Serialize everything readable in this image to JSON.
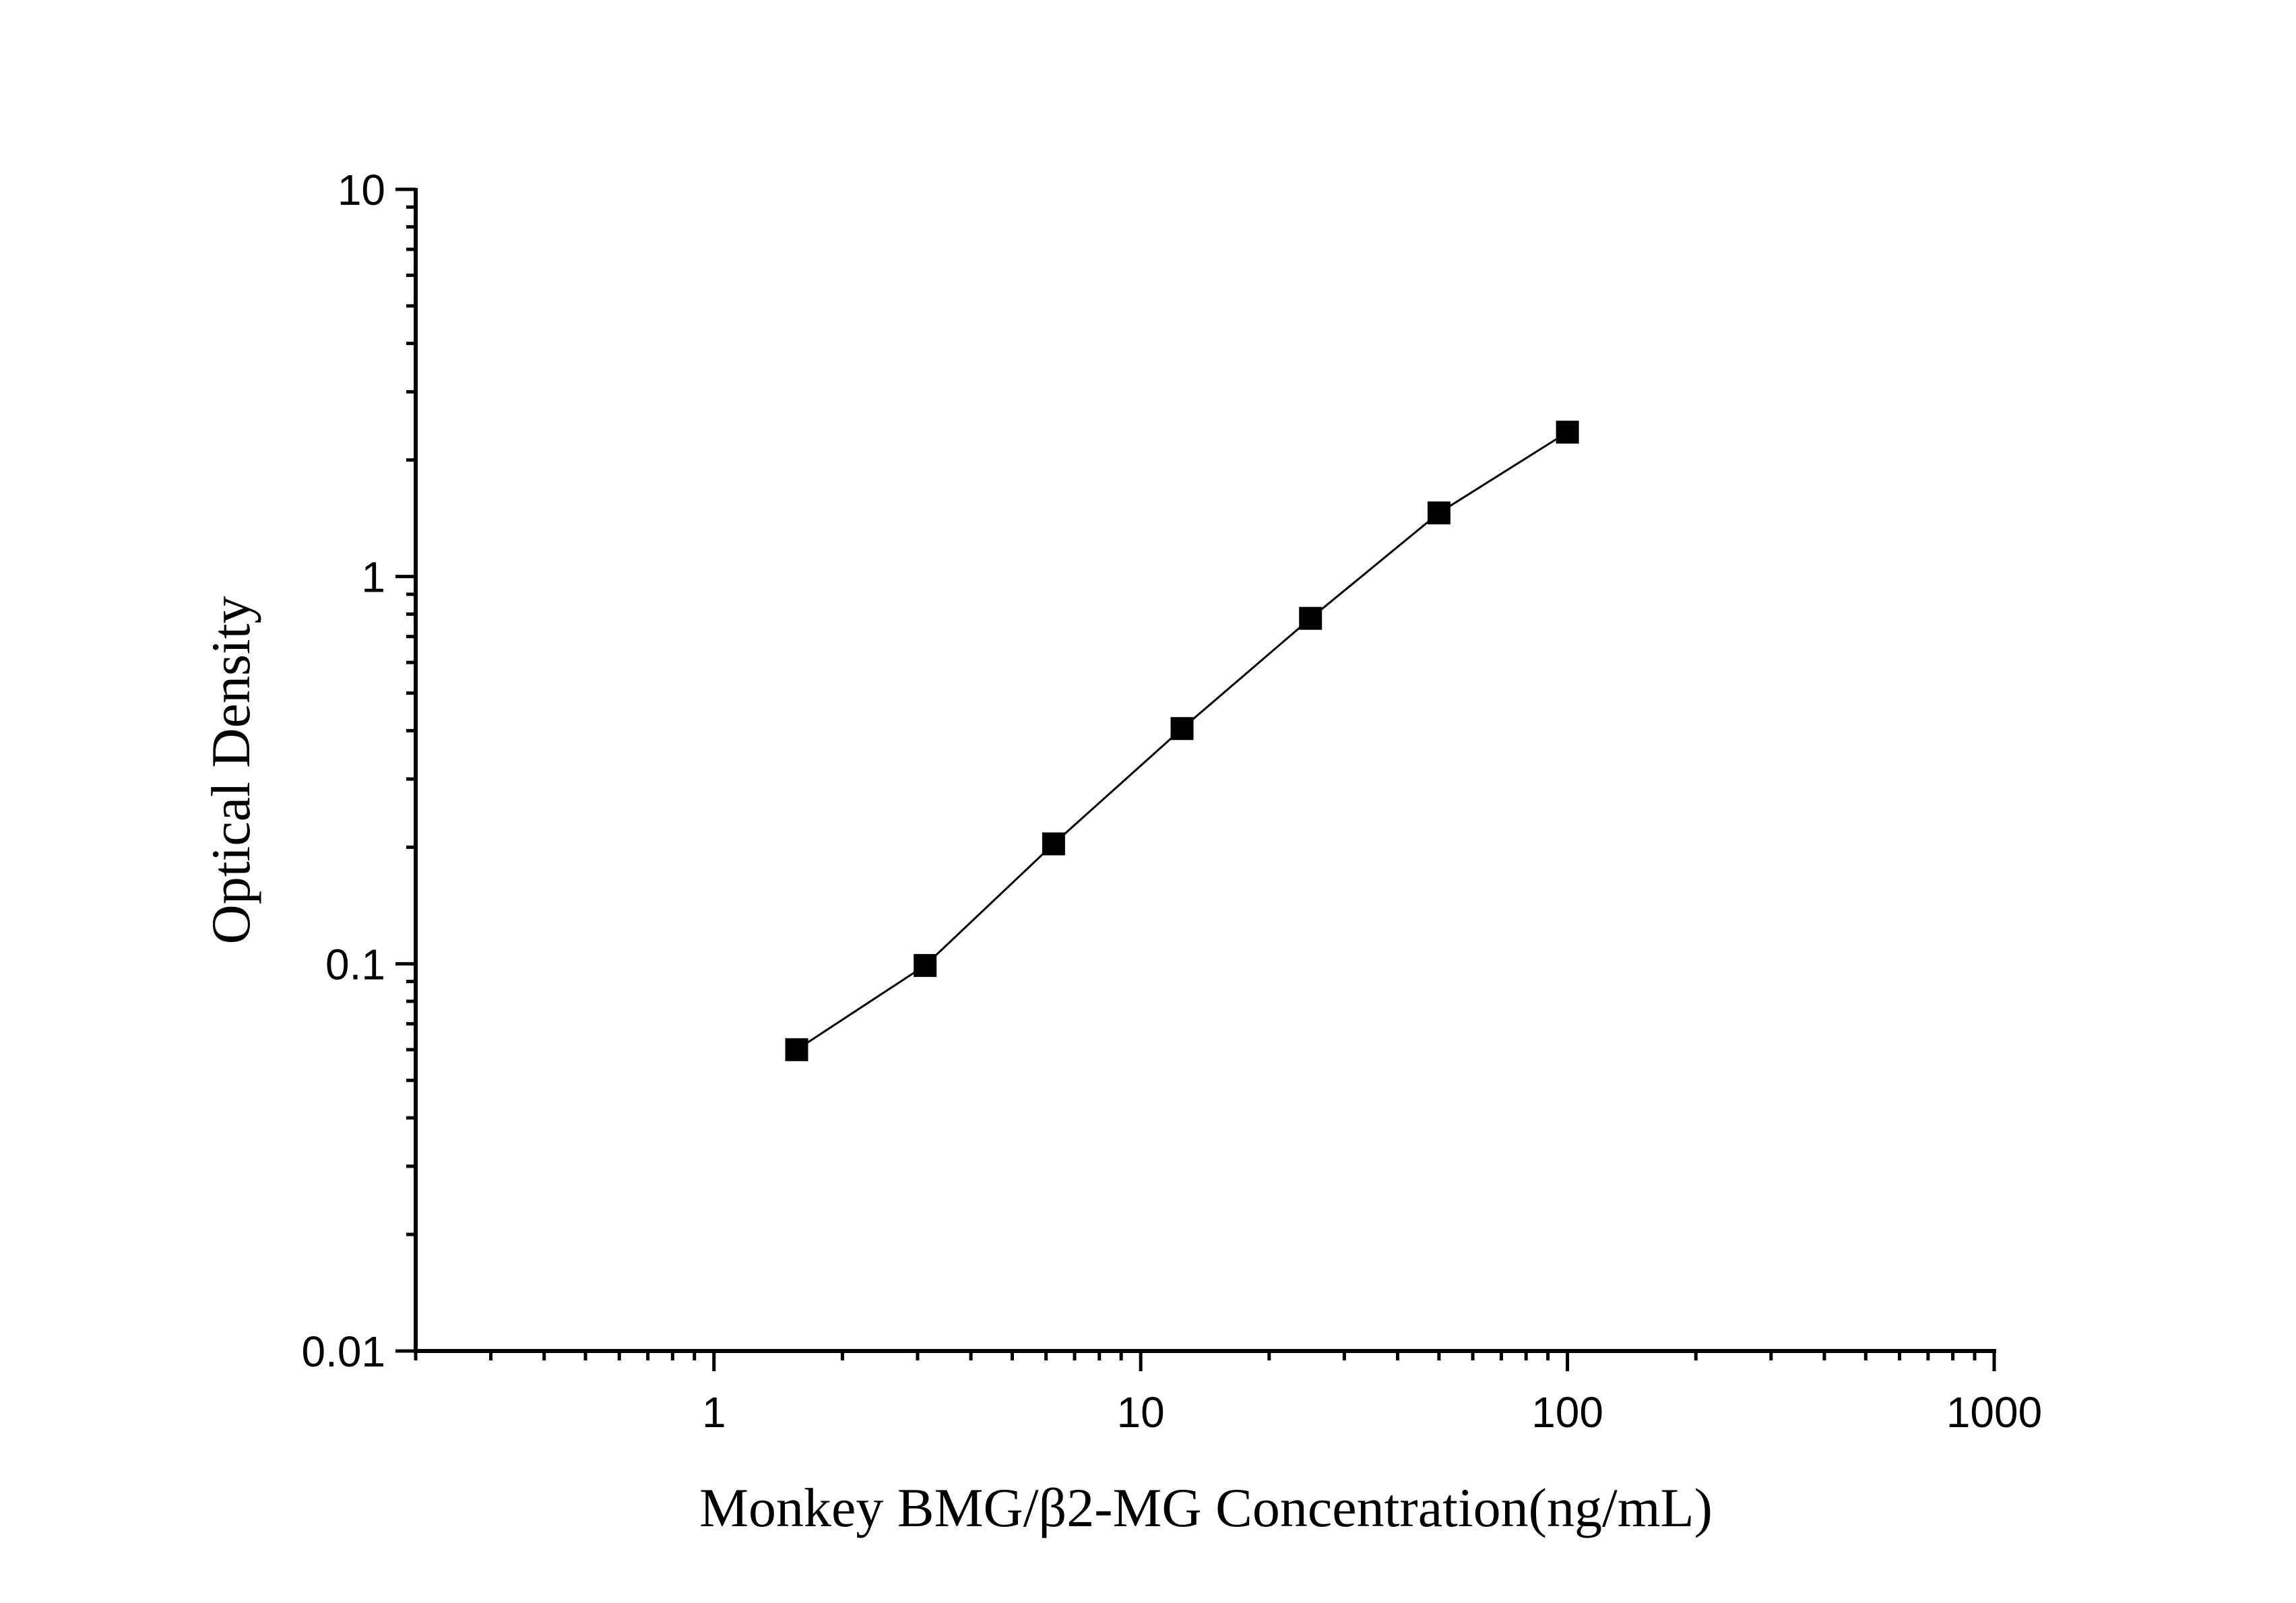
{
  "chart_data": {
    "type": "line",
    "title": "",
    "xlabel": "Monkey BMG/β2-MG Concentration(ng/mL)",
    "ylabel": "Optical Density",
    "x_scale": "log",
    "y_scale": "log",
    "xlim": [
      0.2,
      1000
    ],
    "ylim": [
      0.01,
      10
    ],
    "x_ticks": [
      1,
      10,
      100,
      1000
    ],
    "x_tick_labels": [
      "1",
      "10",
      "100",
      "1000"
    ],
    "y_ticks": [
      0.01,
      0.1,
      1,
      10
    ],
    "y_tick_labels": [
      "0.01",
      "0.1",
      "1",
      "10"
    ],
    "grid": false,
    "marker": "square",
    "color": "#000000",
    "series": [
      {
        "x": [
          1.5625,
          3.125,
          6.25,
          12.5,
          25,
          50,
          100
        ],
        "y": [
          0.06,
          0.099,
          0.204,
          0.405,
          0.78,
          1.46,
          2.36
        ]
      }
    ]
  }
}
